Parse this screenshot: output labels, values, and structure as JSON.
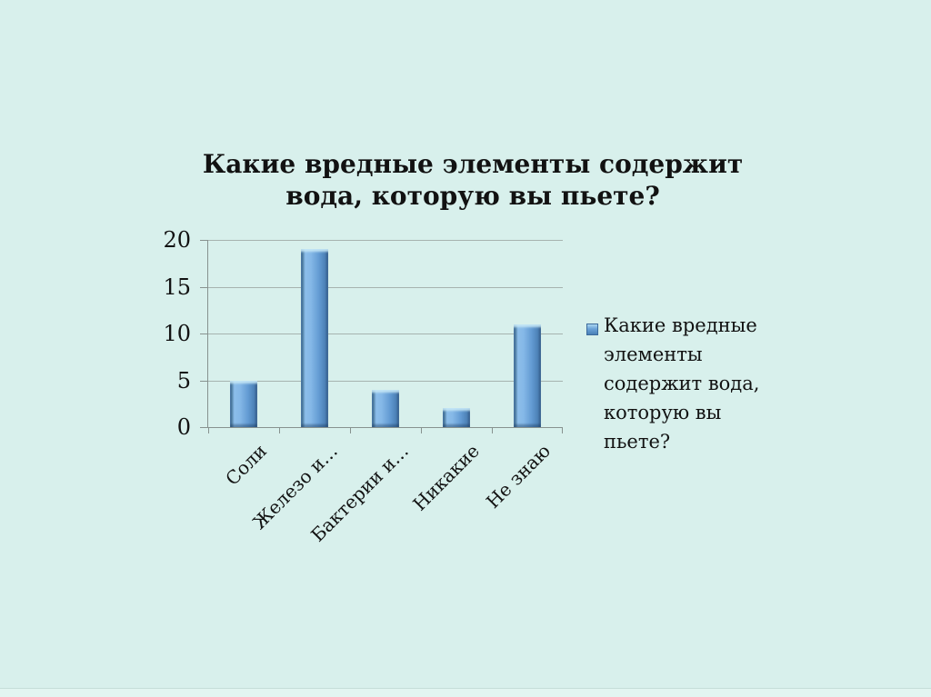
{
  "slide": {
    "background_color": "#d8f0ec"
  },
  "chart_data": {
    "type": "bar",
    "title": "Какие вредные элементы содержит вода, которую вы пьете?",
    "title_lines": [
      "Какие вредные элементы содержит",
      "вода, которую вы пьете?"
    ],
    "categories": [
      "Соли",
      "Железо и…",
      "Бактерии и…",
      "Никакие",
      "Не знаю"
    ],
    "values": [
      5,
      19,
      4,
      2,
      11
    ],
    "y_ticks": [
      0,
      5,
      10,
      15,
      20
    ],
    "ylim": [
      0,
      20
    ],
    "grid": true,
    "legend_position": "right",
    "bar_color_main": "#5b94cd",
    "bar_color_light": "#8cbeea",
    "bar_color_dark": "#3a6595",
    "axis_color": "#87928f",
    "gridline_color": "#a6b3af"
  },
  "legend": {
    "label": "Какие вредные элементы содержит вода, которую вы пьете?",
    "lines": [
      "Какие вредные",
      "элементы",
      "содержит вода,",
      "которую вы",
      "пьете?"
    ],
    "swatch_color": "#5b94cd"
  }
}
